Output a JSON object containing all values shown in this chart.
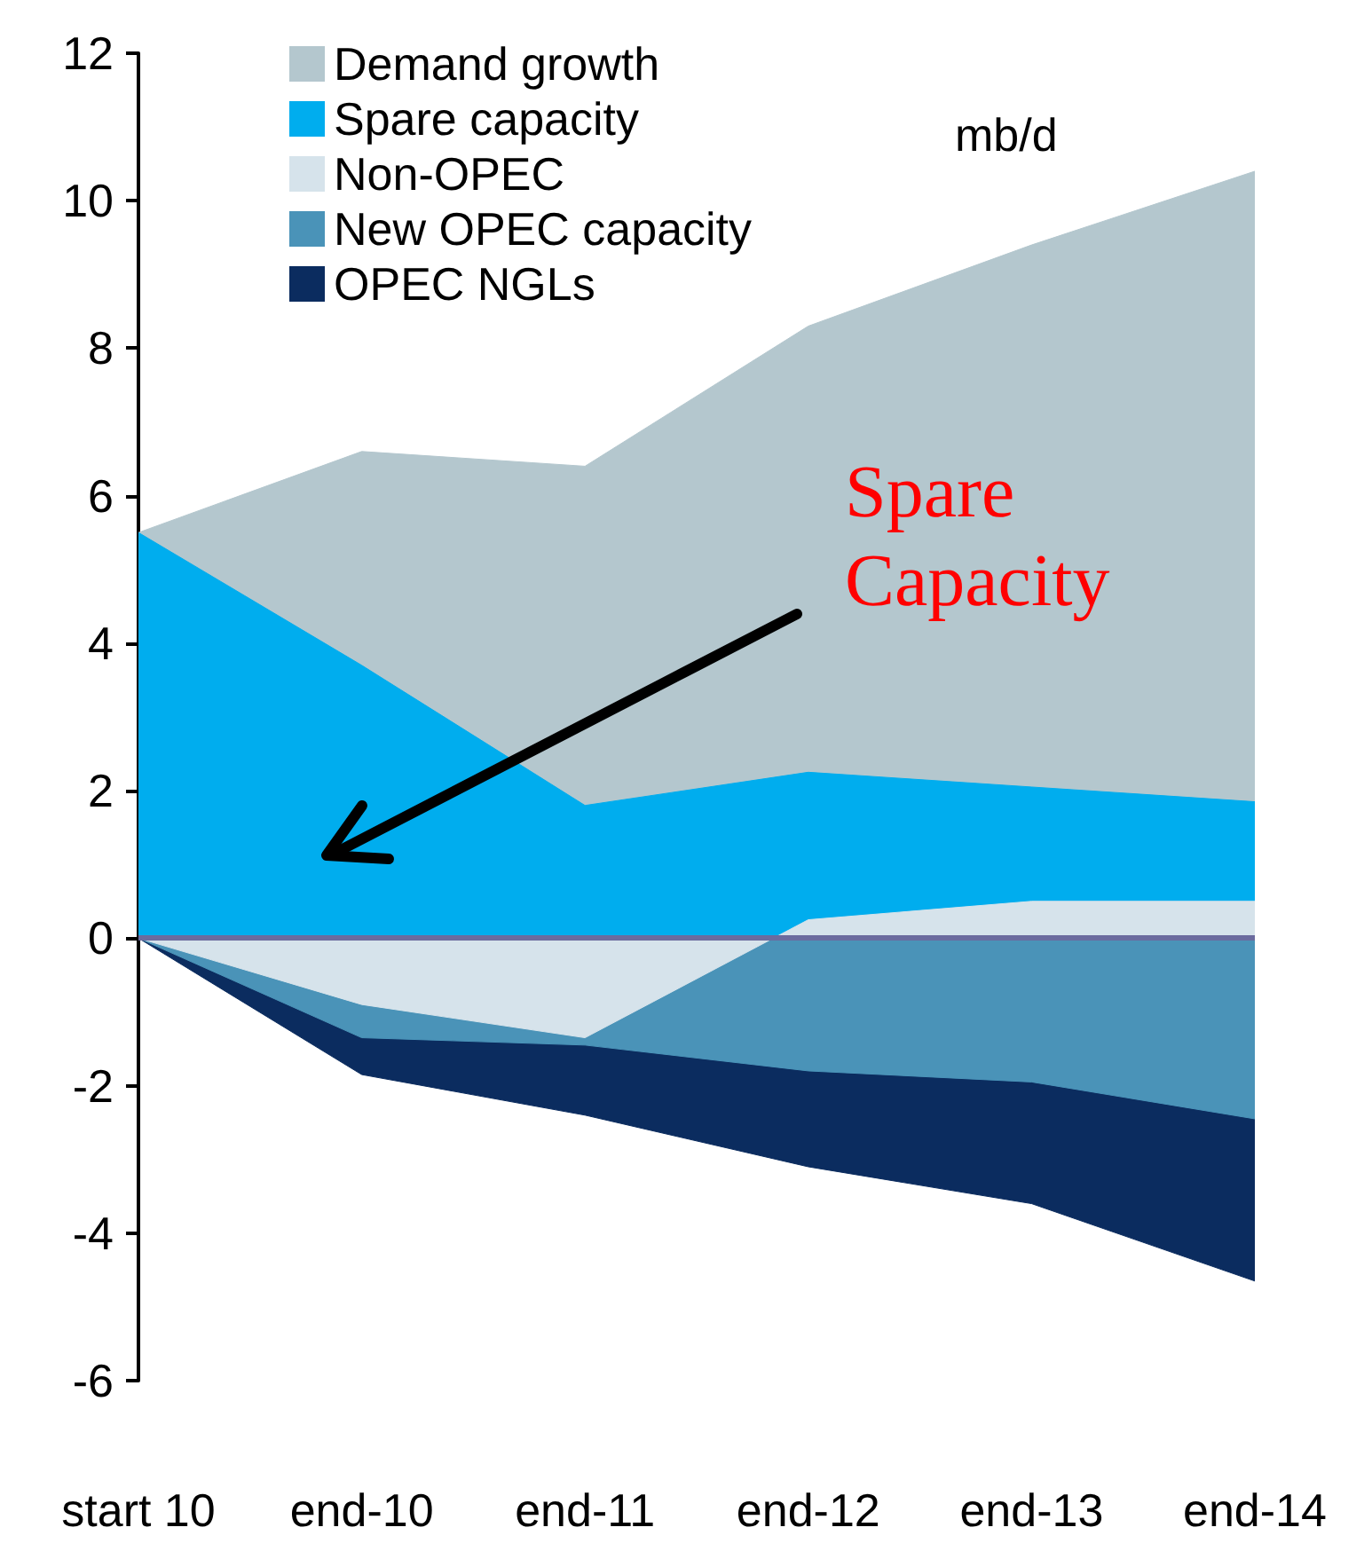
{
  "chart_data": {
    "type": "area",
    "categories": [
      "start 10",
      "end-10",
      "end-11",
      "end-12",
      "end-13",
      "end-14"
    ],
    "series": [
      {
        "name": "Demand growth",
        "color": "#b4c7ce",
        "values": [
          5.5,
          6.6,
          6.4,
          8.3,
          9.4,
          10.4
        ]
      },
      {
        "name": "Spare capacity",
        "color": "#00adee",
        "values": [
          5.5,
          3.7,
          1.8,
          2.25,
          2.05,
          1.85
        ]
      },
      {
        "name": "Non-OPEC",
        "color": "#d6e3eb",
        "values": [
          0,
          -0.9,
          -1.35,
          0.25,
          0.5,
          0.5
        ]
      },
      {
        "name": "New OPEC capacity",
        "color": "#4a93b8",
        "values": [
          0,
          -1.35,
          -1.45,
          -1.8,
          -1.95,
          -2.45
        ]
      },
      {
        "name": "OPEC NGLs",
        "color": "#0b2c5f",
        "values": [
          0,
          -1.85,
          -2.4,
          -3.1,
          -3.6,
          -4.65
        ]
      }
    ],
    "ylim": [
      -6,
      12
    ],
    "yticks": [
      -6,
      -4,
      -2,
      0,
      2,
      4,
      6,
      8,
      10,
      12
    ],
    "grid": false,
    "legend": "top left",
    "ref_lines": [
      {
        "axis": "y",
        "value": 0,
        "color": "#6b6b9e"
      }
    ],
    "annotations": [
      "mb/d",
      "Spare Capacity"
    ]
  }
}
